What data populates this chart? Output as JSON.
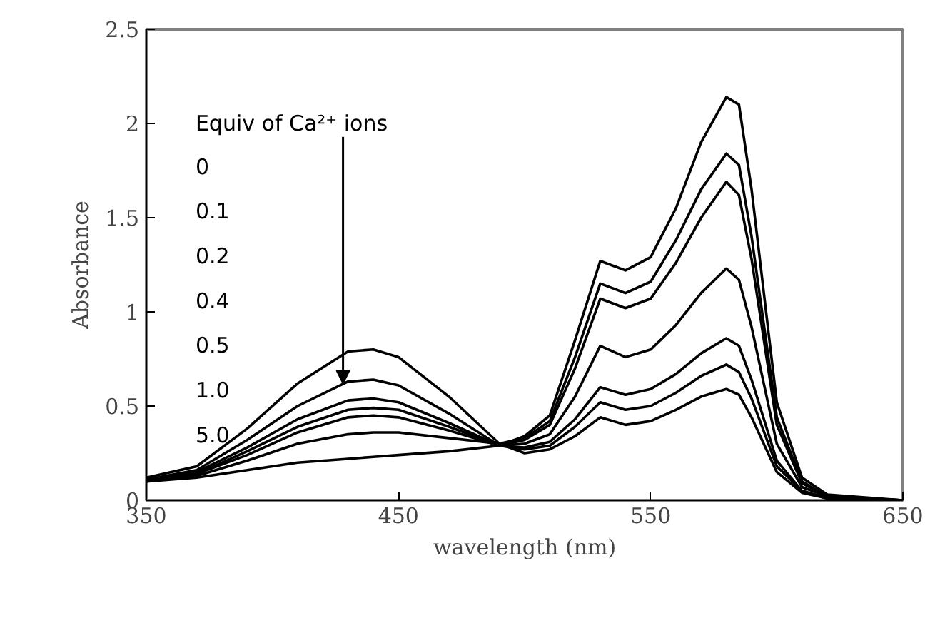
{
  "chart_data": {
    "type": "line",
    "xlabel": "wavelength (nm)",
    "ylabel": "Absorbance",
    "x": [
      350,
      370,
      390,
      410,
      430,
      440,
      450,
      470,
      490,
      500,
      510,
      520,
      530,
      540,
      550,
      560,
      570,
      580,
      585,
      590,
      600,
      610,
      620,
      650
    ],
    "series": [
      {
        "color": "#000000",
        "values": [
          0.12,
          0.18,
          0.38,
          0.62,
          0.79,
          0.8,
          0.76,
          0.55,
          0.3,
          0.25,
          0.27,
          0.34,
          0.44,
          0.4,
          0.42,
          0.48,
          0.55,
          0.59,
          0.56,
          0.44,
          0.15,
          0.04,
          0.01,
          0.0
        ]
      },
      {
        "color": "#000000",
        "values": [
          0.11,
          0.16,
          0.32,
          0.5,
          0.63,
          0.64,
          0.61,
          0.46,
          0.29,
          0.27,
          0.29,
          0.39,
          0.52,
          0.48,
          0.5,
          0.57,
          0.66,
          0.72,
          0.68,
          0.54,
          0.18,
          0.05,
          0.01,
          0.0
        ]
      },
      {
        "color": "#000000",
        "values": [
          0.11,
          0.15,
          0.28,
          0.43,
          0.53,
          0.54,
          0.52,
          0.41,
          0.29,
          0.28,
          0.31,
          0.43,
          0.6,
          0.56,
          0.59,
          0.67,
          0.78,
          0.86,
          0.82,
          0.64,
          0.21,
          0.05,
          0.01,
          0.0
        ]
      },
      {
        "color": "#000000",
        "values": [
          0.11,
          0.14,
          0.26,
          0.39,
          0.48,
          0.49,
          0.48,
          0.39,
          0.29,
          0.3,
          0.35,
          0.55,
          0.82,
          0.76,
          0.8,
          0.93,
          1.1,
          1.23,
          1.17,
          0.92,
          0.3,
          0.07,
          0.02,
          0.0
        ]
      },
      {
        "color": "#000000",
        "values": [
          0.1,
          0.14,
          0.24,
          0.36,
          0.44,
          0.45,
          0.44,
          0.37,
          0.29,
          0.32,
          0.4,
          0.7,
          1.07,
          1.02,
          1.07,
          1.26,
          1.5,
          1.69,
          1.62,
          1.28,
          0.4,
          0.09,
          0.02,
          0.0
        ]
      },
      {
        "color": "#000000",
        "values": [
          0.1,
          0.13,
          0.21,
          0.3,
          0.35,
          0.36,
          0.36,
          0.33,
          0.3,
          0.33,
          0.42,
          0.76,
          1.15,
          1.1,
          1.16,
          1.38,
          1.65,
          1.84,
          1.78,
          1.4,
          0.44,
          0.1,
          0.02,
          0.0
        ]
      },
      {
        "color": "#000000",
        "values": [
          0.1,
          0.12,
          0.16,
          0.2,
          0.22,
          0.23,
          0.24,
          0.26,
          0.29,
          0.34,
          0.45,
          0.85,
          1.27,
          1.22,
          1.29,
          1.55,
          1.9,
          2.14,
          2.1,
          1.65,
          0.52,
          0.12,
          0.03,
          0.0
        ]
      }
    ],
    "xlim": [
      350,
      650
    ],
    "xticks": [
      350,
      450,
      550,
      650
    ],
    "ylim": [
      0,
      2.5
    ],
    "yticks": [
      0,
      {
        "value": 0.5,
        "label": "0.5"
      },
      1,
      {
        "value": 1.5,
        "label": "1.5"
      },
      2,
      {
        "value": 2.5,
        "label": "2.5"
      }
    ],
    "annotations": [
      {
        "text": "Equiv of Ca²⁺ ions",
        "x": 428,
        "y": 0.62
      },
      "0",
      "0.1",
      "0.2",
      "0.4",
      "0.5",
      "1.0",
      "5.0"
    ],
    "grid": false,
    "line_style": "solid",
    "marker": "none"
  }
}
